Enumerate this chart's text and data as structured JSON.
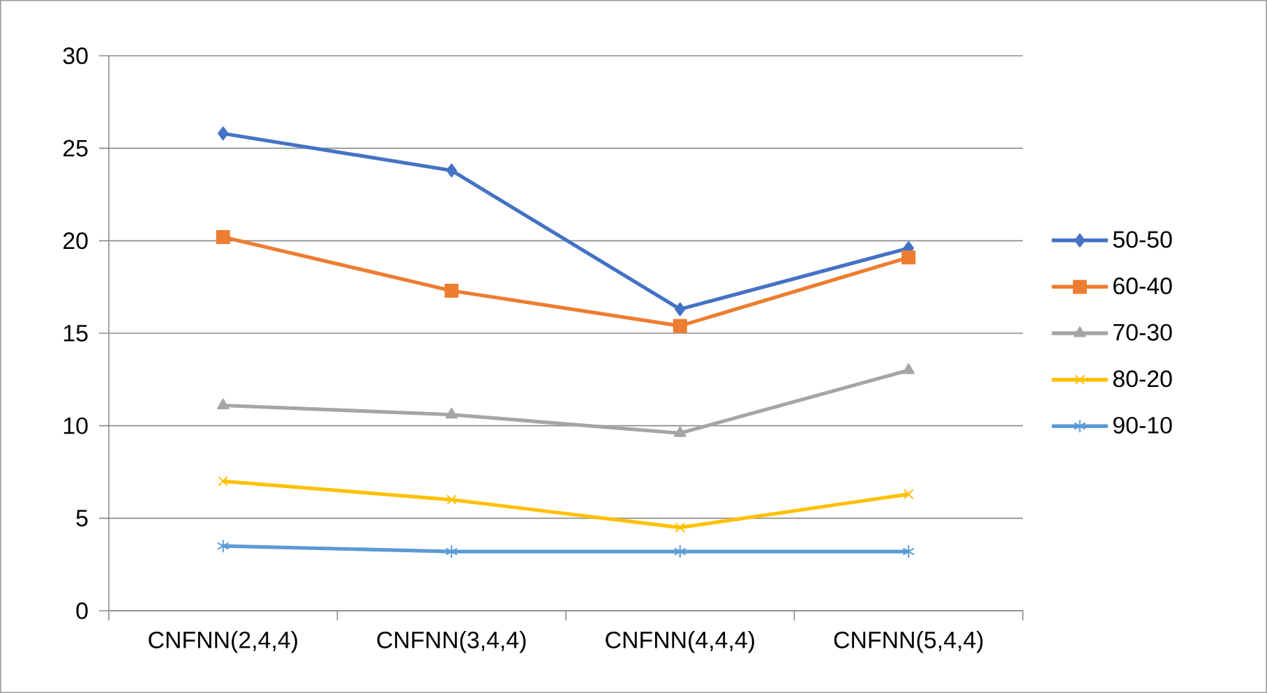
{
  "chart_data": {
    "type": "line",
    "categories": [
      "CNFNN(2,4,4)",
      "CNFNN(3,4,4)",
      "CNFNN(4,4,4)",
      "CNFNN(5,4,4)"
    ],
    "series": [
      {
        "name": "50-50",
        "color": "#4472c4",
        "marker": "diamond",
        "values": [
          25.8,
          23.8,
          16.3,
          19.6
        ]
      },
      {
        "name": "60-40",
        "color": "#ed7d31",
        "marker": "square",
        "values": [
          20.2,
          17.3,
          15.4,
          19.1
        ]
      },
      {
        "name": "70-30",
        "color": "#a5a5a5",
        "marker": "triangle",
        "values": [
          11.1,
          10.6,
          9.6,
          13.0
        ]
      },
      {
        "name": "80-20",
        "color": "#ffc000",
        "marker": "cross",
        "values": [
          7.0,
          6.0,
          4.5,
          6.3
        ]
      },
      {
        "name": "90-10",
        "color": "#5b9bd5",
        "marker": "cross",
        "values": [
          3.5,
          3.2,
          3.2,
          3.2
        ]
      }
    ],
    "ylim": [
      0,
      30
    ],
    "yticks": [
      0,
      5,
      10,
      15,
      20,
      25,
      30
    ],
    "grid": "y",
    "legend": "right",
    "line_style": "solid"
  }
}
